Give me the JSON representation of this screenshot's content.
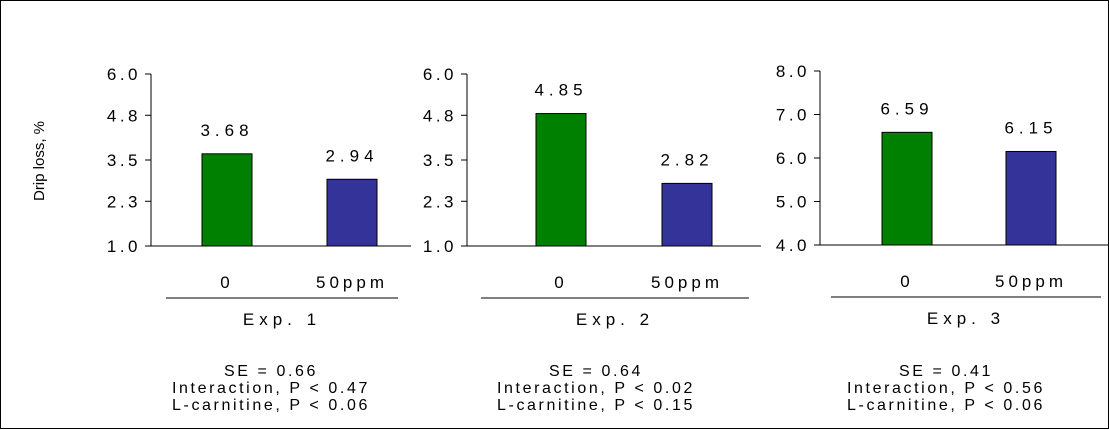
{
  "chart_data": {
    "type": "bar",
    "y_axis_title": "Drip loss, %",
    "colors": {
      "0": "#008000",
      "50ppm": "#333399"
    },
    "panels": [
      {
        "experiment": "Exp. 1",
        "categories": [
          "0",
          "50ppm"
        ],
        "values": [
          3.68,
          2.94
        ],
        "value_labels": [
          "3.68",
          "2.94"
        ],
        "ylim": [
          1.0,
          6.0
        ],
        "yticks": [
          "1.0",
          "2.3",
          "3.5",
          "4.8",
          "6.0"
        ],
        "stats": [
          "SE = 0.66",
          "Interaction, P < 0.47",
          "L-carnitine, P < 0.06"
        ]
      },
      {
        "experiment": "Exp. 2",
        "categories": [
          "0",
          "50ppm"
        ],
        "values": [
          4.85,
          2.82
        ],
        "value_labels": [
          "4.85",
          "2.82"
        ],
        "ylim": [
          1.0,
          6.0
        ],
        "yticks": [
          "1.0",
          "2.3",
          "3.5",
          "4.8",
          "6.0"
        ],
        "stats": [
          "SE = 0.64",
          "Interaction, P < 0.02",
          "L-carnitine, P < 0.15"
        ]
      },
      {
        "experiment": "Exp. 3",
        "categories": [
          "0",
          "50ppm"
        ],
        "values": [
          6.59,
          6.15
        ],
        "value_labels": [
          "6.59",
          "6.15"
        ],
        "ylim": [
          4.0,
          8.0
        ],
        "yticks": [
          "4.0",
          "5.0",
          "6.0",
          "7.0",
          "8.0"
        ],
        "stats": [
          "SE = 0.41",
          "Interaction, P < 0.56",
          "L-carnitine, P < 0.06"
        ]
      }
    ]
  }
}
